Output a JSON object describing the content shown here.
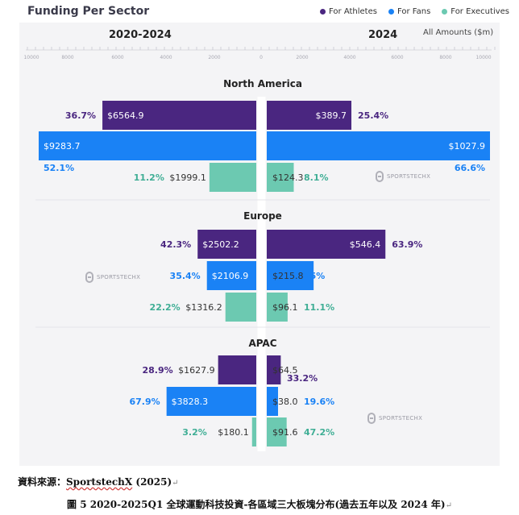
{
  "title": "Funding Per Sector",
  "legend": [
    {
      "label": "For Athletes",
      "color": "#4a2680"
    },
    {
      "label": "For Fans",
      "color": "#1a82f5"
    },
    {
      "label": "For Executives",
      "color": "#6cc9b1"
    }
  ],
  "headers": {
    "left": "2020-2024",
    "right": "2024",
    "unit": "All Amounts ($m)"
  },
  "axis_ticks": [
    "10000",
    "8000",
    "6000",
    "4000",
    "2000",
    "0",
    "2000",
    "4000",
    "6000",
    "8000",
    "10000"
  ],
  "watermark": "SPORTSTECHX",
  "source": {
    "prefix": "資料來源：",
    "brand": "SportstechX",
    "suffix": " (2025)",
    "mark": "↵"
  },
  "caption": {
    "text": "圖 5 2020-2025Q1  全球運動科技投資-各區域三大板塊分布(過去五年以及 2024 年)",
    "mark": "↵"
  },
  "chart_data": {
    "type": "bar",
    "title": "Funding Per Sector",
    "unit": "All Amounts ($m)",
    "series_names": [
      "For Athletes",
      "For Fans",
      "For Executives"
    ],
    "colors": {
      "For Athletes": "#4a2680",
      "For Fans": "#1a82f5",
      "For Executives": "#6cc9b1"
    },
    "regions": [
      {
        "name": "North America",
        "left_period": "2020-2024",
        "right_period": "2024",
        "rows": [
          {
            "series": "For Athletes",
            "left_value": 6564.9,
            "left_label": "$6564.9",
            "left_pct": "36.7%",
            "right_value": 389.7,
            "right_label": "$389.7",
            "right_pct": "25.4%"
          },
          {
            "series": "For Fans",
            "left_value": 9283.7,
            "left_label": "$9283.7",
            "left_pct": "52.1%",
            "right_value": 1027.9,
            "right_label": "$1027.9",
            "right_pct": "66.6%"
          },
          {
            "series": "For Executives",
            "left_value": 1999.1,
            "left_label": "$1999.1",
            "left_pct": "11.2%",
            "right_value": 124.3,
            "right_label": "$124.3",
            "right_pct": "8.1%"
          }
        ]
      },
      {
        "name": "Europe",
        "left_period": "2020-2024",
        "right_period": "2024",
        "rows": [
          {
            "series": "For Athletes",
            "left_value": 2502.2,
            "left_label": "$2502.2",
            "left_pct": "42.3%",
            "right_value": 546.4,
            "right_label": "$546.4",
            "right_pct": "63.9%"
          },
          {
            "series": "For Fans",
            "left_value": 2106.9,
            "left_label": "$2106.9",
            "left_pct": "35.4%",
            "right_value": 215.8,
            "right_label": "$215.8",
            "right_pct": "25%"
          },
          {
            "series": "For Executives",
            "left_value": 1316.2,
            "left_label": "$1316.2",
            "left_pct": "22.2%",
            "right_value": 96.1,
            "right_label": "$96.1",
            "right_pct": "11.1%"
          }
        ]
      },
      {
        "name": "APAC",
        "left_period": "2020-2024",
        "right_period": "2024",
        "rows": [
          {
            "series": "For Athletes",
            "left_value": 1627.9,
            "left_label": "$1627.9",
            "left_pct": "28.9%",
            "right_value": 64.5,
            "right_label": "$64.5",
            "right_pct": "33.2%"
          },
          {
            "series": "For Fans",
            "left_value": 3828.3,
            "left_label": "$3828.3",
            "left_pct": "67.9%",
            "right_value": 38.0,
            "right_label": "$38.0",
            "right_pct": "19.6%"
          },
          {
            "series": "For Executives",
            "left_value": 180.1,
            "left_label": "$180.1",
            "left_pct": "3.2%",
            "right_value": 91.6,
            "right_label": "$91.6",
            "right_pct": "47.2%"
          }
        ]
      }
    ]
  }
}
